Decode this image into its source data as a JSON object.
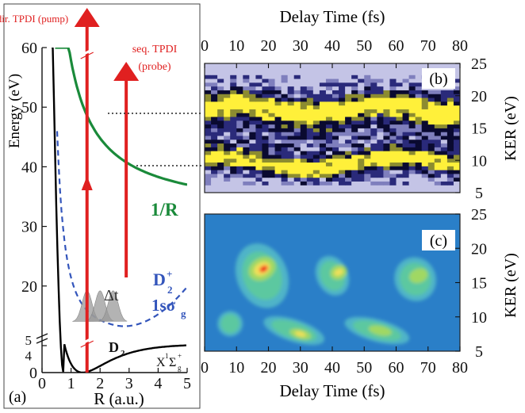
{
  "chart_data": [
    {
      "panel": "a",
      "type": "line",
      "label": "(a)",
      "xlabel": "R (a.u.)",
      "ylabel": "Energy (eV)",
      "xlim": [
        0,
        5
      ],
      "ylim": [
        0,
        60
      ],
      "xticks": [
        "0",
        "1",
        "2",
        "3",
        "4",
        "5"
      ],
      "yticks": [
        "0",
        "10",
        "20",
        "30",
        "40",
        "50",
        "60"
      ],
      "axis_break_labels": [
        "5",
        "4"
      ],
      "series": [
        {
          "name": "1/R",
          "color": "#1a8a3a",
          "x": [
            0.45,
            0.6,
            0.8,
            1.0,
            1.2,
            1.5,
            2.0,
            2.5,
            3.0,
            3.5,
            4.0,
            4.5,
            5.0
          ],
          "y": [
            60,
            56,
            52,
            48.5,
            45.5,
            42.5,
            47,
            44,
            41,
            39.5,
            38.5,
            37.8,
            37
          ]
        },
        {
          "name": "D2+ 1sσg",
          "color": "#3355bb",
          "x": [
            0.5,
            0.6,
            0.7,
            0.8,
            0.9,
            1.0,
            1.2,
            1.5,
            2.0,
            2.5,
            3.0,
            3.5,
            4.0,
            4.5,
            5.0
          ],
          "y": [
            60,
            48,
            38,
            32,
            27,
            24,
            20,
            17,
            15,
            14.3,
            14.5,
            15.5,
            17,
            18.5,
            20
          ]
        },
        {
          "name": "D2 X1Σg+",
          "color": "#000000",
          "x": [
            0.3,
            0.35,
            0.4,
            0.5,
            0.6,
            0.8,
            1.0,
            1.2,
            1.4,
            1.6,
            2.0,
            2.5,
            3.0,
            3.5,
            4.0,
            4.5,
            5.0
          ],
          "y": [
            60,
            40,
            26,
            14,
            7,
            2,
            0.5,
            0,
            0.4,
            1,
            2,
            2.9,
            3.5,
            3.9,
            4.2,
            4.35,
            4.4
          ]
        }
      ],
      "arrows": [
        {
          "label": "dir. TPDI (pump)",
          "color": "#e02020"
        },
        {
          "label": "seq. TPDI (probe)",
          "color": "#e02020"
        }
      ],
      "annotations": [
        "1/R",
        "D",
        "+",
        "2",
        "1sσ",
        "g",
        "Δt",
        "D",
        "2",
        "X",
        "1",
        "Σ",
        "g",
        "+"
      ]
    },
    {
      "panel": "b",
      "type": "heatmap",
      "label": "(b)",
      "xlabel": "Delay Time (fs)",
      "ylabel": "KER (eV)",
      "xlim": [
        0,
        80
      ],
      "ylim": [
        5,
        25
      ],
      "xticks": [
        "0",
        "10",
        "20",
        "30",
        "40",
        "50",
        "60",
        "70",
        "80"
      ],
      "yticks": [
        "5",
        "10",
        "15",
        "20",
        "25"
      ],
      "colors": [
        "#c4c4e6",
        "#7f7fbd",
        "#2a2a7a",
        "#0a0a30",
        "#8c8c30",
        "#fff03a"
      ],
      "bands_center_kev": [
        18,
        9.5
      ]
    },
    {
      "panel": "c",
      "type": "heatmap",
      "label": "(c)",
      "xlabel": "Delay Time (fs)",
      "ylabel": "KER (eV)",
      "xlim": [
        0,
        80
      ],
      "ylim": [
        5,
        25
      ],
      "xticks": [
        "0",
        "10",
        "20",
        "30",
        "40",
        "50",
        "60",
        "70",
        "80"
      ],
      "yticks": [
        "5",
        "10",
        "15",
        "20",
        "25"
      ],
      "colors": [
        "#2a7fc8",
        "#4fb4c8",
        "#5cc8a0",
        "#a0d864",
        "#f0e05a",
        "#ff6a30",
        "#e81010"
      ]
    }
  ]
}
